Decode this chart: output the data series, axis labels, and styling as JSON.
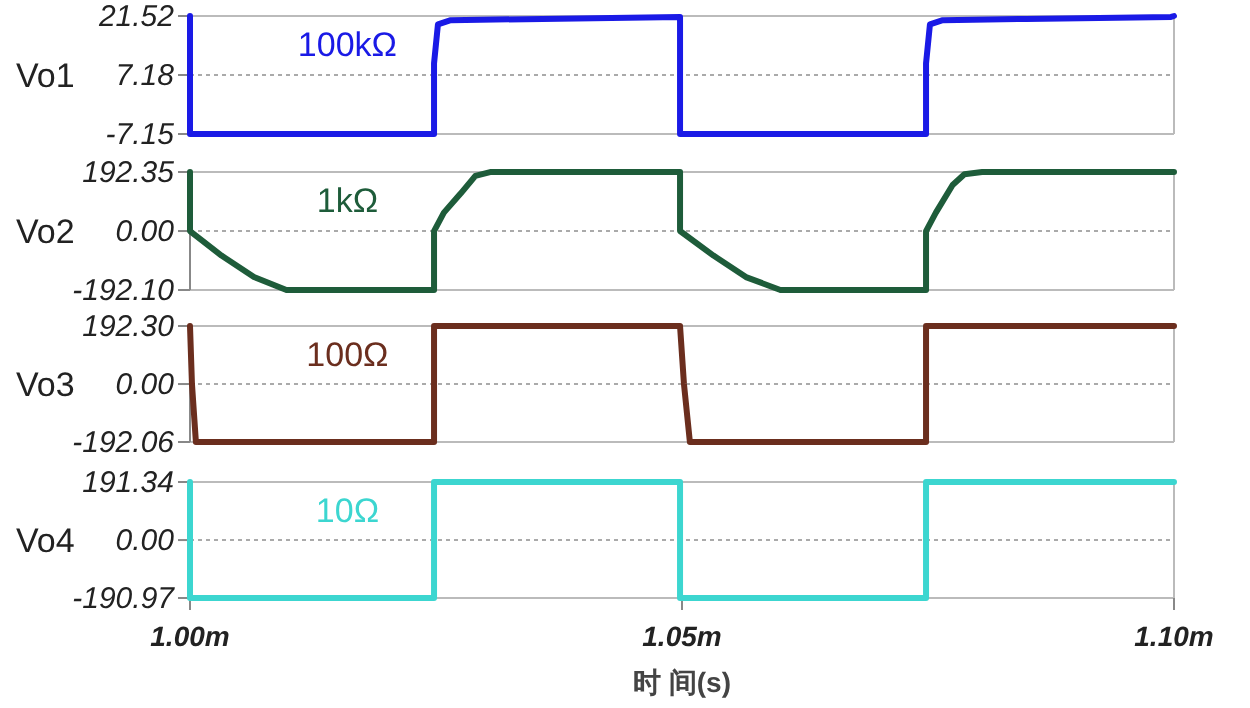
{
  "chart_data": [
    {
      "type": "line",
      "ylabel": "Vo1",
      "xlim": [
        1.0,
        1.1
      ],
      "ylim": [
        -7.15,
        21.52
      ],
      "yticks": [
        -7.15,
        7.18,
        21.52
      ],
      "tick_labels": "y",
      "grid": "y",
      "legend": false,
      "series": [
        {
          "name": "100kΩ",
          "color": "#1a1ae6",
          "x": [
            1.0,
            1.0,
            1.0248,
            1.0248,
            1.0252,
            1.0265,
            1.0498,
            1.0498,
            1.0748,
            1.0748,
            1.0752,
            1.0765,
            1.085,
            1.0997,
            1.1
          ],
          "values": [
            21.52,
            -7.15,
            -7.15,
            10,
            19.5,
            20.5,
            21.3,
            -7.15,
            -7.15,
            10,
            19.5,
            20.5,
            20.8,
            21.3,
            21.52
          ]
        }
      ]
    },
    {
      "type": "line",
      "ylabel": "Vo2",
      "xlim": [
        1.0,
        1.1
      ],
      "ylim": [
        -192.1,
        192.35
      ],
      "yticks": [
        {
          "value": -192.1,
          "label": "-192.10"
        },
        {
          "value": 0,
          "label": "0.00"
        },
        192.35
      ],
      "tick_labels": "y",
      "grid": "y",
      "legend": false,
      "series": [
        {
          "name": "1kΩ",
          "color": "#1e5c3a",
          "x": [
            1.0,
            1.0,
            1.0032,
            1.0065,
            1.0098,
            1.0248,
            1.0248,
            1.0258,
            1.0275,
            1.029,
            1.0305,
            1.0498,
            1.0498,
            1.0532,
            1.0565,
            1.06,
            1.0748,
            1.0748,
            1.0758,
            1.0775,
            1.0787,
            1.0805,
            1.1
          ],
          "values": [
            192,
            0,
            -80,
            -150,
            -192,
            -192,
            0,
            60,
            122,
            180,
            192,
            192,
            0,
            -80,
            -150,
            -192,
            -192,
            0,
            60,
            150,
            185,
            192,
            192
          ]
        }
      ]
    },
    {
      "type": "line",
      "ylabel": "Vo3",
      "xlim": [
        1.0,
        1.1
      ],
      "ylim": [
        -192.06,
        192.3
      ],
      "yticks": [
        -192.06,
        {
          "value": 0,
          "label": "0.00"
        },
        {
          "value": 192.3,
          "label": "192.30"
        }
      ],
      "tick_labels": "y",
      "grid": "y",
      "legend": false,
      "series": [
        {
          "name": "100Ω",
          "color": "#6b2e1e",
          "x": [
            1.0,
            1.0002,
            1.0006,
            1.0248,
            1.0248,
            1.0498,
            1.0502,
            1.0508,
            1.0748,
            1.0748,
            1.1
          ],
          "values": [
            192,
            0,
            -192,
            -192,
            192,
            192,
            0,
            -192,
            -192,
            192,
            192
          ]
        }
      ]
    },
    {
      "type": "line",
      "ylabel": "Vo4",
      "xlabel": "时 间(s)",
      "xlim": [
        1.0,
        1.1
      ],
      "ylim": [
        -190.97,
        191.34
      ],
      "yticks": [
        -190.97,
        {
          "value": 0,
          "label": "0.00"
        },
        191.34
      ],
      "xticks": [
        {
          "value": 1.0,
          "label": "1.00m"
        },
        {
          "value": 1.05,
          "label": "1.05m"
        },
        {
          "value": 1.1,
          "label": "1.10m"
        }
      ],
      "grid": "y",
      "legend": false,
      "series": [
        {
          "name": "10Ω",
          "color": "#3cd6d0",
          "x": [
            1.0,
            1.0,
            1.0248,
            1.0248,
            1.0498,
            1.0498,
            1.0748,
            1.0748,
            1.1
          ],
          "values": [
            191.34,
            -190.97,
            -190.97,
            191.34,
            191.34,
            -190.97,
            -190.97,
            191.34,
            191.34
          ]
        }
      ]
    }
  ]
}
